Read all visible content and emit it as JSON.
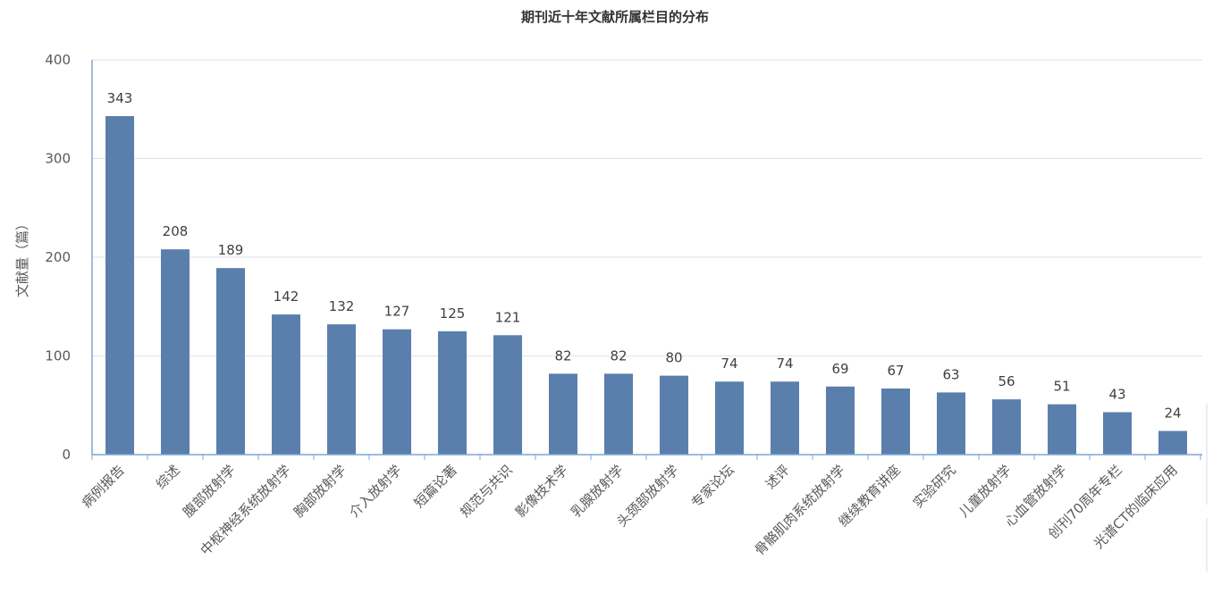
{
  "chart_data": {
    "type": "bar",
    "title": "期刊近十年文献所属栏目的分布",
    "xlabel": "",
    "ylabel": "文献量（篇）",
    "ylim": [
      0,
      400
    ],
    "yticks": [
      0,
      100,
      200,
      300,
      400
    ],
    "grid": true,
    "categories": [
      "病例报告",
      "综述",
      "腹部放射学",
      "中枢神经系统放射学",
      "胸部放射学",
      "介入放射学",
      "短篇论著",
      "规范与共识",
      "影像技术学",
      "乳腺放射学",
      "头颈部放射学",
      "专家论坛",
      "述评",
      "骨骼肌肉系统放射学",
      "继续教育讲座",
      "实验研究",
      "儿童放射学",
      "心血管放射学",
      "创刊70周年专栏",
      "光谱CT的临床应用"
    ],
    "values": [
      343,
      208,
      189,
      142,
      132,
      127,
      125,
      121,
      82,
      82,
      80,
      74,
      74,
      69,
      67,
      63,
      56,
      51,
      43,
      24
    ],
    "bar_color": "#5b7fad"
  }
}
